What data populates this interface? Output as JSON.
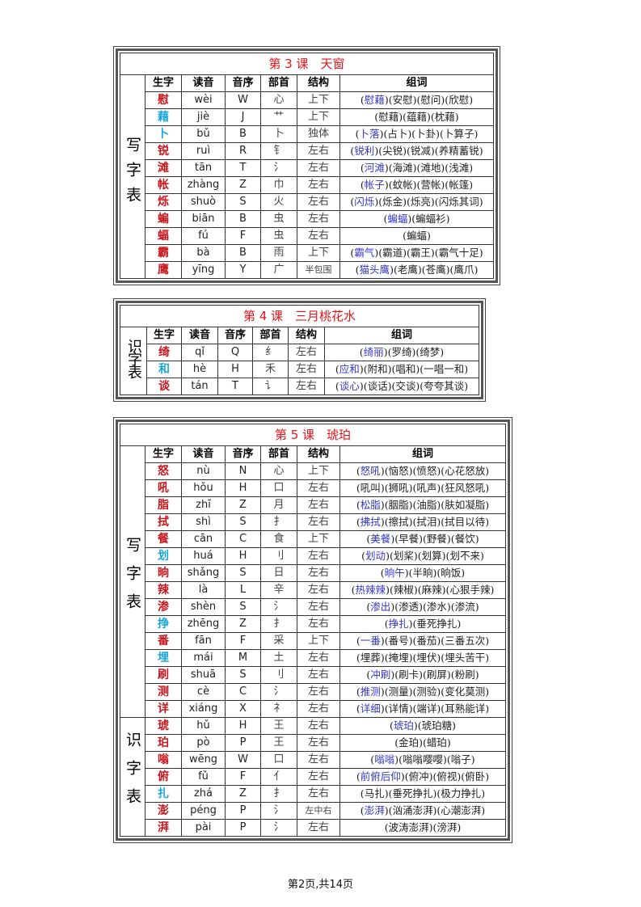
{
  "colors": {
    "char_red": "#c8161d",
    "char_cyan": "#19a6da",
    "highlight_word": "#3437c8",
    "title": "#e0151b"
  },
  "headers": [
    "生字",
    "读音",
    "音序",
    "部首",
    "结构",
    "组词"
  ],
  "lessons": [
    {
      "title": "第 3 课　天窗",
      "sections": [
        {
          "label": "写字表",
          "rows": [
            {
              "char": "慰",
              "color": "red",
              "pinyin": "wèi",
              "initial": "W",
              "radical": "心",
              "structure": "上下",
              "highlight_first": true,
              "words": [
                "慰藉",
                "安慰",
                "慰问",
                "欣慰"
              ]
            },
            {
              "char": "藉",
              "color": "cyan",
              "pinyin": "jiè",
              "initial": "J",
              "radical": "艹",
              "structure": "上下",
              "highlight_first": false,
              "words": [
                "慰藉",
                "蕴藉",
                "枕藉"
              ]
            },
            {
              "char": "卜",
              "color": "cyan",
              "pinyin": "bǔ",
              "initial": "B",
              "radical": "卜",
              "structure": "独体",
              "highlight_first": true,
              "words": [
                "卜落",
                "占卜",
                "卜卦",
                "卜算子"
              ]
            },
            {
              "char": "锐",
              "color": "red",
              "pinyin": "ruì",
              "initial": "R",
              "radical": "钅",
              "structure": "左右",
              "highlight_first": true,
              "words": [
                "锐利",
                "尖锐",
                "锐减",
                "养精蓄锐"
              ]
            },
            {
              "char": "滩",
              "color": "red",
              "pinyin": "tān",
              "initial": "T",
              "radical": "氵",
              "structure": "左右",
              "highlight_first": true,
              "words": [
                "河滩",
                "海滩",
                "滩地",
                "浅滩"
              ]
            },
            {
              "char": "帐",
              "color": "red",
              "pinyin": "zhàng",
              "initial": "Z",
              "radical": "巾",
              "structure": "左右",
              "highlight_first": true,
              "words": [
                "帐子",
                "蚊帐",
                "营帐",
                "帐篷"
              ]
            },
            {
              "char": "烁",
              "color": "red",
              "pinyin": "shuò",
              "initial": "S",
              "radical": "火",
              "structure": "左右",
              "highlight_first": true,
              "words": [
                "闪烁",
                "烁金",
                "烁亮",
                "闪烁其词"
              ]
            },
            {
              "char": "蝙",
              "color": "red",
              "pinyin": "biān",
              "initial": "B",
              "radical": "虫",
              "structure": "左右",
              "highlight_first": true,
              "words": [
                "蝙蝠",
                "蝙蝠衫"
              ]
            },
            {
              "char": "蝠",
              "color": "red",
              "pinyin": "fú",
              "initial": "F",
              "radical": "虫",
              "structure": "左右",
              "highlight_first": false,
              "words": [
                "蝙蝠"
              ]
            },
            {
              "char": "霸",
              "color": "red",
              "pinyin": "bà",
              "initial": "B",
              "radical": "雨",
              "structure": "上下",
              "highlight_first": true,
              "words": [
                "霸气",
                "霸道",
                "霸王",
                "霸气十足"
              ]
            },
            {
              "char": "鹰",
              "color": "red",
              "pinyin": "yīng",
              "initial": "Y",
              "radical": "广",
              "structure": "半包围",
              "highlight_first": true,
              "words": [
                "猫头鹰",
                "老鹰",
                "苍鹰",
                "鹰爪"
              ]
            }
          ]
        }
      ]
    },
    {
      "title": "第 4 课　三月桃花水",
      "sections": [
        {
          "label": "识字表",
          "rows": [
            {
              "char": "绮",
              "color": "red",
              "pinyin": "qǐ",
              "initial": "Q",
              "radical": "纟",
              "structure": "左右",
              "highlight_first": true,
              "words": [
                "绮丽",
                "罗绮",
                "绮梦"
              ]
            },
            {
              "char": "和",
              "color": "cyan",
              "pinyin": "hè",
              "initial": "H",
              "radical": "禾",
              "structure": "左右",
              "highlight_first": true,
              "words": [
                "应和",
                "附和",
                "唱和",
                "一唱一和"
              ]
            },
            {
              "char": "谈",
              "color": "red",
              "pinyin": "tán",
              "initial": "T",
              "radical": "讠",
              "structure": "左右",
              "highlight_first": true,
              "words": [
                "谈心",
                "谈话",
                "交谈",
                "夸夸其谈"
              ]
            }
          ]
        }
      ]
    },
    {
      "title": "第 5 课　琥珀",
      "sections": [
        {
          "label": "写字表",
          "rows": [
            {
              "char": "怒",
              "color": "red",
              "pinyin": "nù",
              "initial": "N",
              "radical": "心",
              "structure": "上下",
              "highlight_first": true,
              "words": [
                "怒吼",
                "恼怒",
                "愤怒",
                "心花怒放"
              ]
            },
            {
              "char": "吼",
              "color": "red",
              "pinyin": "hǒu",
              "initial": "H",
              "radical": "口",
              "structure": "左右",
              "highlight_first": false,
              "words": [
                "吼叫",
                "狮吼",
                "吼声",
                "狂风怒吼"
              ]
            },
            {
              "char": "脂",
              "color": "red",
              "pinyin": "zhī",
              "initial": "Z",
              "radical": "月",
              "structure": "左右",
              "highlight_first": true,
              "words": [
                "松脂",
                "胭脂",
                "油脂",
                "肤如凝脂"
              ]
            },
            {
              "char": "拭",
              "color": "red",
              "pinyin": "shì",
              "initial": "S",
              "radical": "扌",
              "structure": "左右",
              "highlight_first": true,
              "words": [
                "拂拭",
                "擦拭",
                "拭泪",
                "拭目以待"
              ]
            },
            {
              "char": "餐",
              "color": "red",
              "pinyin": "cān",
              "initial": "C",
              "radical": "食",
              "structure": "上下",
              "highlight_first": true,
              "words": [
                "美餐",
                "早餐",
                "野餐",
                "餐饮"
              ]
            },
            {
              "char": "划",
              "color": "cyan",
              "pinyin": "huá",
              "initial": "H",
              "radical": "刂",
              "structure": "左右",
              "highlight_first": true,
              "words": [
                "划动",
                "划桨",
                "划算",
                "划不来"
              ]
            },
            {
              "char": "晌",
              "color": "red",
              "pinyin": "shǎng",
              "initial": "S",
              "radical": "日",
              "structure": "左右",
              "highlight_first": true,
              "words": [
                "晌午",
                "半晌",
                "晌饭"
              ]
            },
            {
              "char": "辣",
              "color": "red",
              "pinyin": "là",
              "initial": "L",
              "radical": "辛",
              "structure": "左右",
              "highlight_first": true,
              "words": [
                "热辣辣",
                "辣椒",
                "麻辣",
                "心狠手辣"
              ]
            },
            {
              "char": "渗",
              "color": "red",
              "pinyin": "shèn",
              "initial": "S",
              "radical": "氵",
              "structure": "左右",
              "highlight_first": true,
              "words": [
                "渗出",
                "渗透",
                "渗水",
                "渗流"
              ]
            },
            {
              "char": "挣",
              "color": "cyan",
              "pinyin": "zhēng",
              "initial": "Z",
              "radical": "扌",
              "structure": "左右",
              "highlight_first": true,
              "words": [
                "挣扎",
                "垂死挣扎"
              ]
            },
            {
              "char": "番",
              "color": "red",
              "pinyin": "fān",
              "initial": "F",
              "radical": "采",
              "structure": "上下",
              "highlight_first": true,
              "words": [
                "一番",
                "番号",
                "番茄",
                "三番五次"
              ]
            },
            {
              "char": "埋",
              "color": "cyan",
              "pinyin": "mái",
              "initial": "M",
              "radical": "土",
              "structure": "左右",
              "highlight_first": false,
              "words": [
                "埋葬",
                "掩埋",
                "埋伏",
                "埋头苦干"
              ]
            },
            {
              "char": "刷",
              "color": "red",
              "pinyin": "shuā",
              "initial": "S",
              "radical": "刂",
              "structure": "左右",
              "highlight_first": true,
              "words": [
                "冲刷",
                "刷卡",
                "刷屏",
                "粉刷"
              ]
            },
            {
              "char": "测",
              "color": "red",
              "pinyin": "cè",
              "initial": "C",
              "radical": "氵",
              "structure": "左右",
              "highlight_first": true,
              "words": [
                "推测",
                "测量",
                "测验",
                "变化莫测"
              ]
            },
            {
              "char": "详",
              "color": "red",
              "pinyin": "xiáng",
              "initial": "X",
              "radical": "礻",
              "structure": "左右",
              "highlight_first": true,
              "words": [
                "详细",
                "详情",
                "端详",
                "耳熟能详"
              ]
            }
          ]
        },
        {
          "label": "识字表",
          "rows": [
            {
              "char": "琥",
              "color": "red",
              "pinyin": "hǔ",
              "initial": "H",
              "radical": "王",
              "structure": "左右",
              "highlight_first": true,
              "words": [
                "琥珀",
                "琥珀糖"
              ]
            },
            {
              "char": "珀",
              "color": "red",
              "pinyin": "pò",
              "initial": "P",
              "radical": "王",
              "structure": "左右",
              "highlight_first": false,
              "words": [
                "金珀",
                "蜡珀"
              ]
            },
            {
              "char": "嗡",
              "color": "red",
              "pinyin": "wēng",
              "initial": "W",
              "radical": "口",
              "structure": "左右",
              "highlight_first": true,
              "words": [
                "嗡嗡",
                "嗡嗡嘤嘤",
                "嗡子"
              ]
            },
            {
              "char": "俯",
              "color": "red",
              "pinyin": "fǔ",
              "initial": "F",
              "radical": "亻",
              "structure": "左右",
              "highlight_first": true,
              "words": [
                "前俯后仰",
                "俯冲",
                "俯视",
                "俯卧"
              ]
            },
            {
              "char": "扎",
              "color": "cyan",
              "pinyin": "zhá",
              "initial": "Z",
              "radical": "扌",
              "structure": "左右",
              "highlight_first": false,
              "words": [
                "马扎",
                "垂死挣扎",
                "极力挣扎"
              ]
            },
            {
              "char": "澎",
              "color": "red",
              "pinyin": "péng",
              "initial": "P",
              "radical": "氵",
              "structure": "左中右",
              "highlight_first": true,
              "words": [
                "澎湃",
                "汹涌澎湃",
                "心潮澎湃"
              ]
            },
            {
              "char": "湃",
              "color": "red",
              "pinyin": "pài",
              "initial": "P",
              "radical": "氵",
              "structure": "左右",
              "highlight_first": false,
              "words": [
                "波涛澎湃",
                "滂湃"
              ]
            }
          ]
        }
      ]
    }
  ],
  "footer": {
    "page_text": "第2页,共14页"
  }
}
